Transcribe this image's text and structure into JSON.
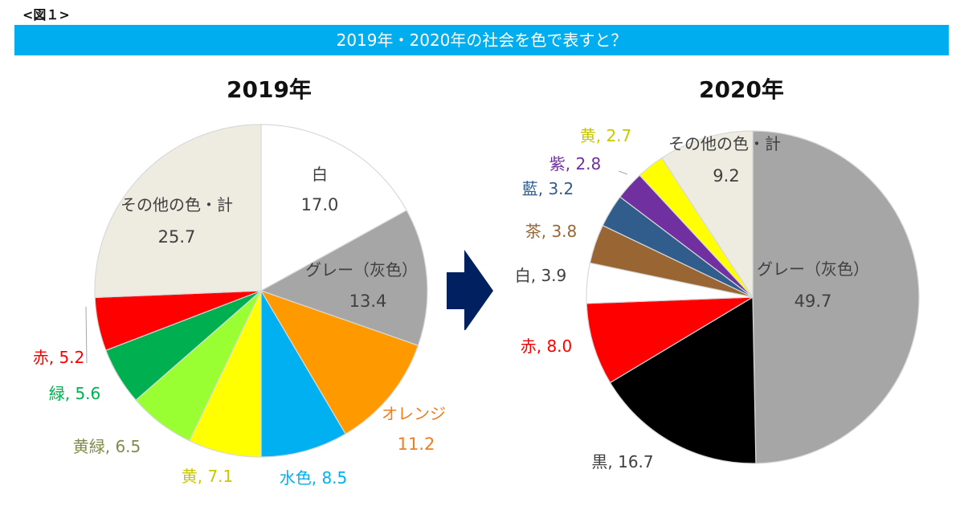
{
  "figure_label": "<図１>",
  "banner_title": "2019年・2020年の社会を色で表すと？",
  "chart_data": [
    {
      "type": "pie",
      "title": "2019年",
      "start": "12 o'clock, clockwise",
      "slices": [
        {
          "label": "白",
          "value": 17.0,
          "color": "#ffffff",
          "text_color": "#404040",
          "label_text": "白",
          "value_text": "17.0",
          "placement": "inside"
        },
        {
          "label": "グレー（灰色）",
          "value": 13.4,
          "color": "#a6a6a6",
          "text_color": "#404040",
          "label_text": "グレー（灰色）",
          "value_text": "13.4",
          "placement": "inside"
        },
        {
          "label": "オレンジ",
          "value": 11.2,
          "color": "#ff9900",
          "text_color": "#f07d20",
          "label_text": "オレンジ",
          "value_text": "11.2",
          "placement": "outside"
        },
        {
          "label": "水色",
          "value": 8.5,
          "color": "#00b0f0",
          "text_color": "#00b0f0",
          "label_text": "水色, 8.5",
          "value_text": "",
          "placement": "outside"
        },
        {
          "label": "黄",
          "value": 7.1,
          "color": "#ffff00",
          "text_color": "#c8c800",
          "label_text": "黄, 7.1",
          "value_text": "",
          "placement": "outside"
        },
        {
          "label": "黄緑",
          "value": 6.5,
          "color": "#99ff33",
          "text_color": "#7f8c4a",
          "label_text": "黄緑, 6.5",
          "value_text": "",
          "placement": "outside"
        },
        {
          "label": "緑",
          "value": 5.6,
          "color": "#00b050",
          "text_color": "#00b050",
          "label_text": "緑, 5.6",
          "value_text": "",
          "placement": "outside"
        },
        {
          "label": "赤",
          "value": 5.2,
          "color": "#ff0000",
          "text_color": "#ff0000",
          "label_text": "赤, 5.2",
          "value_text": "",
          "placement": "outside"
        },
        {
          "label": "その他の色・計",
          "value": 25.7,
          "color": "#eeece1",
          "text_color": "#404040",
          "label_text": "その他の色・計",
          "value_text": "25.7",
          "placement": "inside"
        }
      ]
    },
    {
      "type": "pie",
      "title": "2020年",
      "start": "12 o'clock, clockwise",
      "slices": [
        {
          "label": "グレー（灰色）",
          "value": 49.7,
          "color": "#a6a6a6",
          "text_color": "#404040",
          "label_text": "グレー（灰色）",
          "value_text": "49.7",
          "placement": "inside"
        },
        {
          "label": "黒",
          "value": 16.7,
          "color": "#000000",
          "text_color": "#404040",
          "label_text": "黒, 16.7",
          "value_text": "",
          "placement": "outside"
        },
        {
          "label": "赤",
          "value": 8.0,
          "color": "#ff0000",
          "text_color": "#ff0000",
          "label_text": "赤, 8.0",
          "value_text": "",
          "placement": "outside"
        },
        {
          "label": "白",
          "value": 3.9,
          "color": "#ffffff",
          "text_color": "#404040",
          "label_text": "白, 3.9",
          "value_text": "",
          "placement": "outside"
        },
        {
          "label": "茶",
          "value": 3.8,
          "color": "#996633",
          "text_color": "#996633",
          "label_text": "茶, 3.8",
          "value_text": "",
          "placement": "outside"
        },
        {
          "label": "藍",
          "value": 3.2,
          "color": "#305d8c",
          "text_color": "#305d8c",
          "label_text": "藍, 3.2",
          "value_text": "",
          "placement": "outside"
        },
        {
          "label": "紫",
          "value": 2.8,
          "color": "#7030a0",
          "text_color": "#7030a0",
          "label_text": "紫, 2.8",
          "value_text": "",
          "placement": "outside"
        },
        {
          "label": "黄",
          "value": 2.7,
          "color": "#ffff00",
          "text_color": "#c8c800",
          "label_text": "黄, 2.7",
          "value_text": "",
          "placement": "outside"
        },
        {
          "label": "その他の色・計",
          "value": 9.2,
          "color": "#eeece1",
          "text_color": "#404040",
          "label_text": "その他の色・計",
          "value_text": "9.2",
          "placement": "inside"
        }
      ]
    }
  ],
  "arrow": {
    "icon": "right-arrow-icon",
    "color": "#002060"
  }
}
